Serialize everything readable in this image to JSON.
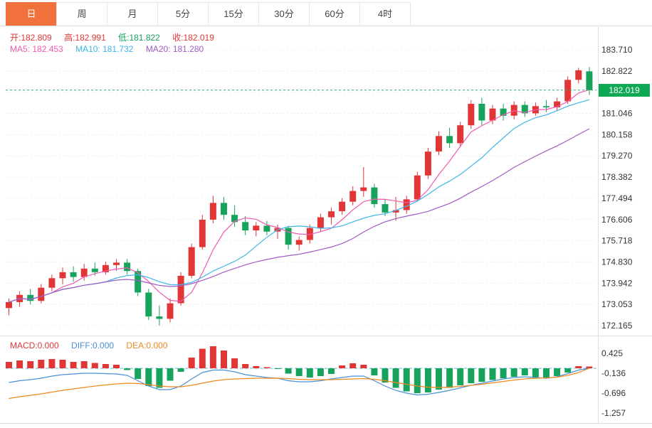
{
  "tabs": {
    "items": [
      "日",
      "周",
      "月",
      "5分",
      "15分",
      "30分",
      "60分",
      "4时"
    ],
    "active_index": 0
  },
  "info": {
    "open": "开:182.809",
    "high": "高:182.991",
    "low": "低:181.822",
    "close": "收:182.019",
    "ma5": "MA5: 182.453",
    "ma10": "MA10: 181.732",
    "ma20": "MA20: 181.280",
    "macd": "MACD:0.000",
    "diff": "DIFF:0.000",
    "dea": "DEA:0.000"
  },
  "axis": {
    "price_labels": [
      "183.710",
      "182.822",
      "181.046",
      "180.158",
      "179.270",
      "178.382",
      "177.494",
      "176.606",
      "175.718",
      "174.830",
      "173.942",
      "173.053",
      "172.165"
    ],
    "price_tag": "182.019",
    "macd_labels": [
      "0.425",
      "-0.136",
      "-0.696",
      "-1.257"
    ]
  },
  "colors": {
    "up": "#e23535",
    "down": "#17a35c",
    "ma5": "#f05bb0",
    "ma10": "#3fb6e8",
    "ma20": "#a15cc4",
    "diff": "#4a90d9",
    "dea": "#f0881e",
    "price_line": "#2fae6a",
    "price_tag_bg": "#0fa854",
    "zero_line": "#55c2d8",
    "tab_active_bg": "#f0713c",
    "axis_text": "#333333",
    "border": "#e0e0e0",
    "grid": "#ececec"
  },
  "chart_data": {
    "type": "candlestick",
    "period": "日",
    "ohlc_summary": {
      "open": 182.809,
      "high": 182.991,
      "low": 181.822,
      "close": 182.019
    },
    "ma_values": {
      "ma5": 182.453,
      "ma10": 181.732,
      "ma20": 181.28
    },
    "current_price": 182.019,
    "price_gridlines": [
      183.71,
      182.822,
      181.934,
      181.046,
      180.158,
      179.27,
      178.382,
      177.494,
      176.606,
      175.718,
      174.83,
      173.942,
      173.053,
      172.165
    ],
    "candles": [
      [
        172.9,
        173.3,
        172.6,
        173.15
      ],
      [
        173.15,
        173.6,
        172.95,
        173.45
      ],
      [
        173.45,
        173.7,
        173.05,
        173.2
      ],
      [
        173.2,
        173.9,
        173.1,
        173.75
      ],
      [
        173.75,
        174.3,
        173.6,
        174.15
      ],
      [
        174.15,
        174.6,
        173.9,
        174.4
      ],
      [
        174.4,
        174.65,
        174.0,
        174.2
      ],
      [
        174.2,
        174.75,
        174.05,
        174.55
      ],
      [
        174.55,
        174.8,
        174.25,
        174.4
      ],
      [
        174.4,
        174.85,
        174.3,
        174.7
      ],
      [
        174.7,
        174.95,
        174.45,
        174.8
      ],
      [
        174.8,
        174.95,
        174.3,
        174.45
      ],
      [
        174.45,
        174.55,
        173.4,
        173.55
      ],
      [
        173.55,
        173.7,
        172.4,
        172.55
      ],
      [
        172.55,
        173.0,
        172.17,
        172.45
      ],
      [
        172.45,
        173.3,
        172.3,
        173.1
      ],
      [
        173.1,
        174.4,
        173.0,
        174.25
      ],
      [
        174.25,
        175.6,
        174.15,
        175.45
      ],
      [
        175.45,
        176.8,
        175.35,
        176.6
      ],
      [
        176.6,
        177.6,
        176.45,
        177.3
      ],
      [
        177.3,
        177.55,
        176.6,
        176.8
      ],
      [
        176.8,
        177.2,
        176.3,
        176.5
      ],
      [
        176.5,
        176.75,
        175.95,
        176.15
      ],
      [
        176.15,
        176.5,
        175.9,
        176.35
      ],
      [
        176.35,
        176.55,
        175.95,
        176.1
      ],
      [
        176.1,
        176.4,
        175.8,
        176.25
      ],
      [
        176.25,
        176.35,
        175.35,
        175.55
      ],
      [
        175.55,
        175.9,
        175.3,
        175.75
      ],
      [
        175.75,
        176.4,
        175.6,
        176.25
      ],
      [
        176.25,
        176.85,
        176.1,
        176.7
      ],
      [
        176.7,
        177.1,
        176.4,
        176.95
      ],
      [
        176.95,
        177.5,
        176.8,
        177.35
      ],
      [
        177.35,
        178.0,
        177.2,
        177.8
      ],
      [
        177.8,
        178.8,
        177.55,
        177.95
      ],
      [
        177.95,
        178.1,
        177.1,
        177.25
      ],
      [
        177.25,
        177.45,
        176.75,
        176.9
      ],
      [
        176.9,
        177.55,
        176.55,
        177.0
      ],
      [
        177.0,
        177.6,
        176.85,
        177.45
      ],
      [
        177.45,
        178.6,
        177.35,
        178.45
      ],
      [
        178.45,
        179.6,
        178.3,
        179.45
      ],
      [
        179.45,
        180.3,
        179.3,
        180.1
      ],
      [
        180.1,
        180.45,
        179.6,
        179.8
      ],
      [
        179.8,
        180.7,
        179.65,
        180.55
      ],
      [
        180.55,
        181.6,
        180.4,
        181.45
      ],
      [
        181.45,
        181.7,
        180.55,
        180.75
      ],
      [
        180.75,
        181.4,
        180.6,
        181.25
      ],
      [
        181.25,
        181.45,
        180.75,
        180.95
      ],
      [
        180.95,
        181.55,
        180.8,
        181.4
      ],
      [
        181.4,
        181.55,
        180.9,
        181.05
      ],
      [
        181.05,
        181.5,
        180.95,
        181.35
      ],
      [
        181.35,
        181.6,
        181.1,
        181.3
      ],
      [
        181.3,
        181.7,
        181.15,
        181.55
      ],
      [
        181.55,
        182.6,
        181.45,
        182.45
      ],
      [
        182.45,
        182.95,
        182.3,
        182.85
      ],
      [
        182.809,
        182.991,
        181.822,
        182.019
      ]
    ],
    "macd": {
      "values": {
        "macd": 0.0,
        "diff": 0.0,
        "dea": 0.0
      },
      "gridlines": [
        0.425,
        -0.136,
        -0.696,
        -1.257
      ],
      "hist": [
        0.18,
        0.22,
        0.2,
        0.24,
        0.26,
        0.24,
        0.18,
        0.2,
        0.15,
        0.12,
        0.1,
        -0.05,
        -0.3,
        -0.5,
        -0.55,
        -0.35,
        -0.1,
        0.3,
        0.55,
        0.62,
        0.5,
        0.28,
        0.12,
        0.06,
        0.03,
        -0.02,
        -0.15,
        -0.22,
        -0.26,
        -0.22,
        -0.16,
        0.08,
        0.14,
        0.1,
        -0.2,
        -0.4,
        -0.55,
        -0.65,
        -0.7,
        -0.68,
        -0.6,
        -0.55,
        -0.48,
        -0.42,
        -0.38,
        -0.33,
        -0.28,
        -0.24,
        -0.2,
        -0.25,
        -0.28,
        -0.22,
        -0.12,
        0.06,
        0.05
      ],
      "diff": [
        -0.4,
        -0.35,
        -0.32,
        -0.28,
        -0.22,
        -0.18,
        -0.16,
        -0.14,
        -0.14,
        -0.15,
        -0.16,
        -0.2,
        -0.35,
        -0.5,
        -0.6,
        -0.6,
        -0.5,
        -0.3,
        -0.12,
        -0.05,
        -0.05,
        -0.1,
        -0.18,
        -0.22,
        -0.26,
        -0.28,
        -0.35,
        -0.38,
        -0.38,
        -0.35,
        -0.3,
        -0.26,
        -0.22,
        -0.22,
        -0.35,
        -0.5,
        -0.62,
        -0.7,
        -0.75,
        -0.73,
        -0.68,
        -0.62,
        -0.55,
        -0.48,
        -0.42,
        -0.36,
        -0.3,
        -0.26,
        -0.24,
        -0.26,
        -0.28,
        -0.24,
        -0.15,
        -0.05,
        0.0
      ],
      "dea": [
        -0.85,
        -0.8,
        -0.76,
        -0.72,
        -0.67,
        -0.62,
        -0.58,
        -0.54,
        -0.5,
        -0.47,
        -0.44,
        -0.42,
        -0.43,
        -0.46,
        -0.5,
        -0.52,
        -0.52,
        -0.48,
        -0.42,
        -0.36,
        -0.32,
        -0.3,
        -0.29,
        -0.28,
        -0.28,
        -0.28,
        -0.29,
        -0.31,
        -0.32,
        -0.32,
        -0.32,
        -0.31,
        -0.3,
        -0.29,
        -0.31,
        -0.35,
        -0.4,
        -0.45,
        -0.5,
        -0.53,
        -0.54,
        -0.53,
        -0.51,
        -0.48,
        -0.45,
        -0.41,
        -0.37,
        -0.33,
        -0.3,
        -0.28,
        -0.27,
        -0.25,
        -0.2,
        -0.12,
        0.0
      ]
    }
  }
}
